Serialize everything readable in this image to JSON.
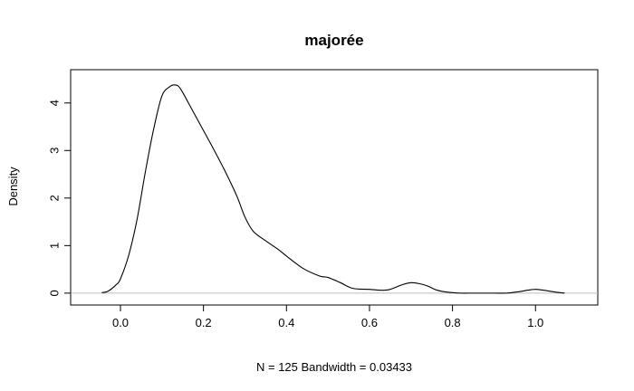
{
  "chart_data": {
    "type": "line",
    "title": "majorée",
    "xlabel": "N = 125   Bandwidth = 0.03433",
    "ylabel": "Density",
    "xlim": [
      -0.12,
      1.15
    ],
    "ylim": [
      -0.25,
      4.7
    ],
    "x_ticks": [
      0.0,
      0.2,
      0.4,
      0.6,
      0.8,
      1.0
    ],
    "x_tick_labels": [
      "0.0",
      "0.2",
      "0.4",
      "0.6",
      "0.8",
      "1.0"
    ],
    "y_ticks": [
      0,
      1,
      2,
      3,
      4
    ],
    "y_tick_labels": [
      "0",
      "1",
      "2",
      "3",
      "4"
    ],
    "baseline": 0,
    "grid": false,
    "legend": "none",
    "series": [
      {
        "x": [
          -0.045,
          -0.03,
          -0.01,
          0.0,
          0.02,
          0.04,
          0.06,
          0.08,
          0.1,
          0.12,
          0.13,
          0.14,
          0.15,
          0.17,
          0.2,
          0.22,
          0.25,
          0.28,
          0.3,
          0.32,
          0.35,
          0.38,
          0.4,
          0.44,
          0.48,
          0.5,
          0.53,
          0.56,
          0.6,
          0.63,
          0.65,
          0.68,
          0.7,
          0.72,
          0.74,
          0.76,
          0.78,
          0.8,
          0.82,
          0.84,
          0.87,
          0.9,
          0.93,
          0.96,
          0.98,
          1.0,
          1.02,
          1.05,
          1.07
        ],
        "y": [
          0.01,
          0.04,
          0.18,
          0.3,
          0.8,
          1.55,
          2.55,
          3.45,
          4.15,
          4.35,
          4.38,
          4.35,
          4.22,
          3.9,
          3.42,
          3.1,
          2.6,
          2.05,
          1.6,
          1.3,
          1.1,
          0.92,
          0.78,
          0.52,
          0.36,
          0.33,
          0.22,
          0.1,
          0.08,
          0.06,
          0.08,
          0.18,
          0.22,
          0.2,
          0.15,
          0.07,
          0.03,
          0.01,
          0.0,
          0.0,
          0.0,
          0.0,
          0.0,
          0.03,
          0.06,
          0.08,
          0.06,
          0.02,
          0.0
        ]
      }
    ]
  }
}
